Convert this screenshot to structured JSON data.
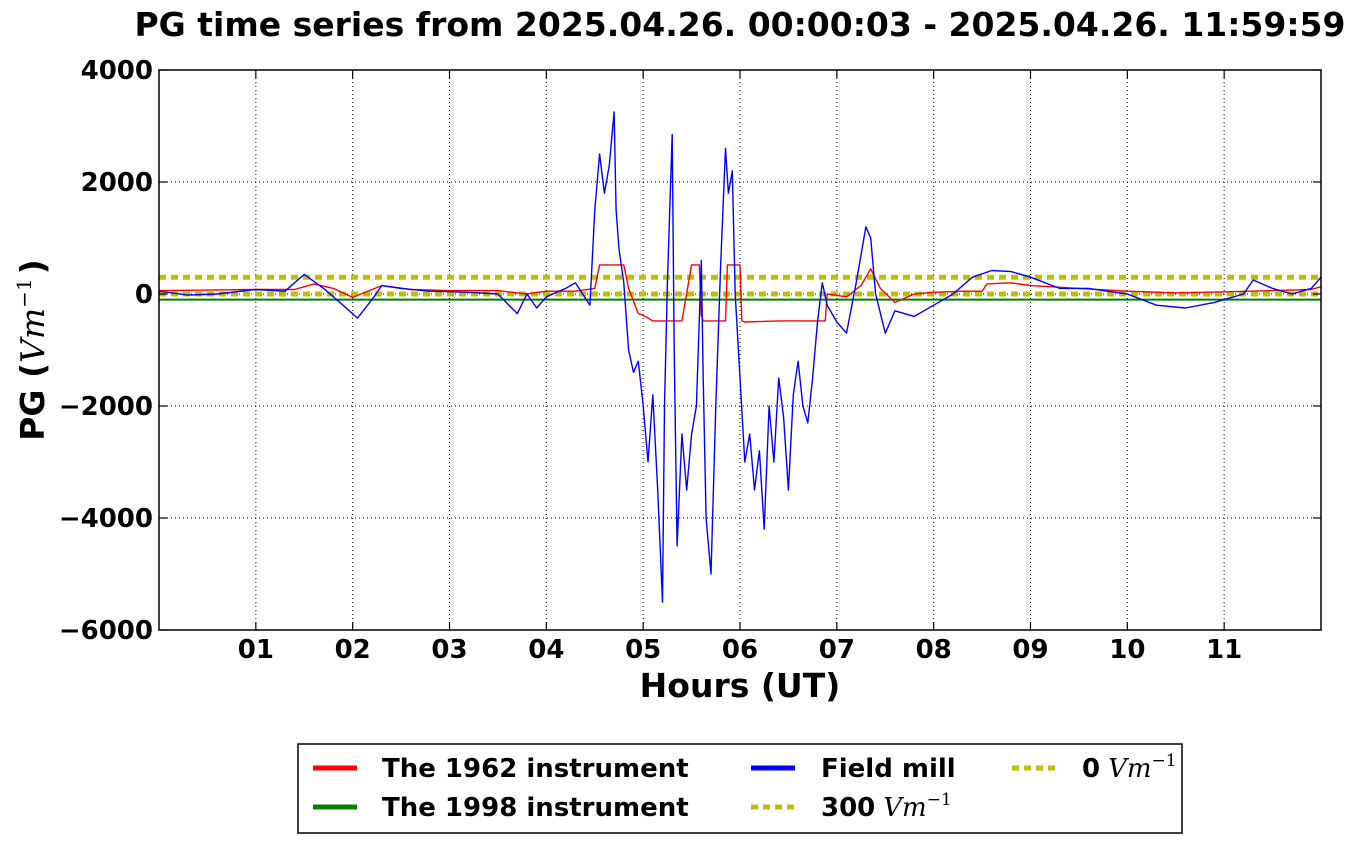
{
  "chart_data": {
    "type": "line",
    "title": "PG time series from 2025.04.26. 00:00:03 - 2025.04.26. 11:59:59",
    "xlabel": "Hours (UT)",
    "ylabel_prefix": "PG (",
    "ylabel_unit": "Vm",
    "ylabel_unit_exp": "−1",
    "ylabel_suffix": ")",
    "xlim": [
      0,
      12
    ],
    "ylim": [
      -6000,
      4000
    ],
    "x_ticks": [
      1,
      2,
      3,
      4,
      5,
      6,
      7,
      8,
      9,
      10,
      11
    ],
    "x_tick_labels": [
      "01",
      "02",
      "03",
      "04",
      "05",
      "06",
      "07",
      "08",
      "09",
      "10",
      "11"
    ],
    "y_ticks": [
      -6000,
      -4000,
      -2000,
      0,
      2000,
      4000
    ],
    "y_tick_labels": [
      "−6000",
      "−4000",
      "−2000",
      "0",
      "2000",
      "4000"
    ],
    "grid": true,
    "legend_position": "bottom-center-outside",
    "legend_columns": 3,
    "series": [
      {
        "name": "The 1962 instrument",
        "color": "#ff0000",
        "style": "solid",
        "x": [
          0,
          0.5,
          1.0,
          1.4,
          1.6,
          1.8,
          2.0,
          2.3,
          2.6,
          3.0,
          3.5,
          3.8,
          4.0,
          4.3,
          4.5,
          4.55,
          4.8,
          4.85,
          4.95,
          5.0,
          5.1,
          5.15,
          5.4,
          5.5,
          5.58,
          5.6,
          5.62,
          5.85,
          5.87,
          6.0,
          6.02,
          6.05,
          6.4,
          6.7,
          6.88,
          6.9,
          7.1,
          7.25,
          7.35,
          7.45,
          7.6,
          7.8,
          8.0,
          8.3,
          8.5,
          8.55,
          8.8,
          9.0,
          9.5,
          10.0,
          10.5,
          11.0,
          11.5,
          11.9,
          12.0
        ],
        "y": [
          60,
          70,
          80,
          80,
          180,
          100,
          -60,
          150,
          80,
          60,
          60,
          0,
          50,
          50,
          100,
          520,
          520,
          100,
          -350,
          -380,
          -480,
          -480,
          -480,
          520,
          520,
          -380,
          -480,
          -480,
          520,
          520,
          -480,
          -500,
          -480,
          -480,
          -480,
          0,
          -50,
          150,
          450,
          100,
          -150,
          0,
          30,
          50,
          50,
          180,
          200,
          150,
          100,
          50,
          20,
          40,
          60,
          80,
          130
        ]
      },
      {
        "name": "The 1998 instrument",
        "color": "#008000",
        "style": "solid",
        "x": [
          0,
          12
        ],
        "y": [
          -100,
          -100
        ]
      },
      {
        "name": "Field mill",
        "color": "#0000ff",
        "style": "solid",
        "x": [
          0,
          0.3,
          0.6,
          1.0,
          1.3,
          1.5,
          1.7,
          1.9,
          2.05,
          2.2,
          2.3,
          2.5,
          2.8,
          3.2,
          3.5,
          3.7,
          3.8,
          3.9,
          4.0,
          4.2,
          4.3,
          4.45,
          4.5,
          4.55,
          4.6,
          4.65,
          4.7,
          4.72,
          4.75,
          4.8,
          4.85,
          4.9,
          4.95,
          5.0,
          5.05,
          5.1,
          5.15,
          5.2,
          5.22,
          5.25,
          5.3,
          5.32,
          5.35,
          5.4,
          5.45,
          5.5,
          5.55,
          5.6,
          5.62,
          5.65,
          5.7,
          5.75,
          5.8,
          5.85,
          5.88,
          5.92,
          5.95,
          6.0,
          6.05,
          6.1,
          6.15,
          6.2,
          6.25,
          6.3,
          6.35,
          6.4,
          6.45,
          6.5,
          6.55,
          6.6,
          6.65,
          6.7,
          6.75,
          6.8,
          6.85,
          6.9,
          7.0,
          7.1,
          7.2,
          7.3,
          7.35,
          7.4,
          7.5,
          7.6,
          7.8,
          8.0,
          8.2,
          8.4,
          8.6,
          8.8,
          9.0,
          9.3,
          9.6,
          10.0,
          10.3,
          10.6,
          10.9,
          11.2,
          11.3,
          11.5,
          11.7,
          11.9,
          12.0
        ],
        "y": [
          50,
          -20,
          0,
          80,
          50,
          350,
          100,
          -200,
          -430,
          -100,
          150,
          100,
          50,
          30,
          0,
          -350,
          0,
          -250,
          -50,
          100,
          200,
          -200,
          1500,
          2500,
          1800,
          2300,
          3250,
          1500,
          800,
          200,
          -1000,
          -1400,
          -1200,
          -2000,
          -3000,
          -1800,
          -3500,
          -5500,
          -2000,
          200,
          2850,
          -1000,
          -4500,
          -2500,
          -3500,
          -2500,
          -2000,
          600,
          -1500,
          -4000,
          -5000,
          -2000,
          500,
          2600,
          1800,
          2200,
          0,
          -1500,
          -3000,
          -2500,
          -3500,
          -2800,
          -4200,
          -2000,
          -3000,
          -1500,
          -2200,
          -3500,
          -1800,
          -1200,
          -2000,
          -2300,
          -1500,
          -500,
          200,
          -200,
          -500,
          -700,
          200,
          1200,
          1000,
          0,
          -700,
          -300,
          -400,
          -200,
          0,
          300,
          420,
          400,
          300,
          100,
          100,
          0,
          -200,
          -250,
          -150,
          0,
          250,
          100,
          0,
          100,
          300
        ]
      },
      {
        "name": "300",
        "name_unit": "Vm",
        "name_unit_exp": "−1",
        "color": "#bfbf00",
        "style": "dotted",
        "x": [
          0,
          12
        ],
        "y": [
          300,
          300
        ]
      },
      {
        "name": "0",
        "name_unit": "Vm",
        "name_unit_exp": "−1",
        "color": "#bfbf00",
        "style": "dotted",
        "x": [
          0,
          12
        ],
        "y": [
          0,
          0
        ]
      }
    ]
  }
}
